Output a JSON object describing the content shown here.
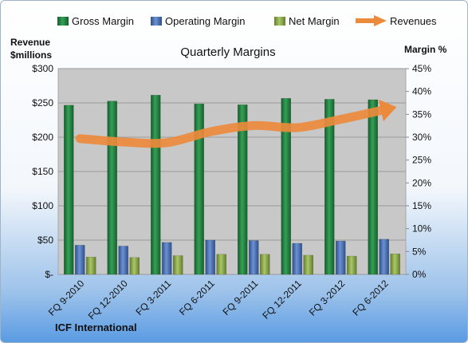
{
  "chart_data": {
    "type": "bar",
    "title": "Quarterly Margins",
    "categories": [
      "FQ 9-2010",
      "FQ 12-2010",
      "FQ 3-2011",
      "FQ 6-2011",
      "FQ 9-2011",
      "FQ 12-2011",
      "FQ 3-2012",
      "FQ 6-2012"
    ],
    "series": [
      {
        "name": "Gross Margin",
        "axis": "margin",
        "color": "#1e7a3c",
        "values": [
          37.0,
          37.9,
          39.2,
          37.3,
          37.1,
          38.5,
          38.3,
          38.2
        ]
      },
      {
        "name": "Operating Margin",
        "axis": "margin",
        "color": "#4a72b8",
        "values": [
          6.4,
          6.2,
          7.0,
          7.5,
          7.4,
          6.8,
          7.3,
          7.7
        ]
      },
      {
        "name": "Net Margin",
        "axis": "margin",
        "color": "#8fb04a",
        "values": [
          3.8,
          3.7,
          4.1,
          4.4,
          4.4,
          4.2,
          4.0,
          4.5
        ]
      },
      {
        "name": "Revenues",
        "axis": "revenue",
        "type": "line",
        "color": "#ec8a3c",
        "values": [
          198,
          193,
          192,
          208,
          217,
          214,
          226,
          240
        ]
      }
    ],
    "y_left": {
      "label_line1": "Revenue",
      "label_line2": "$millions",
      "range": [
        0,
        300
      ],
      "ticks": [
        "$-",
        "$50",
        "$100",
        "$150",
        "$200",
        "$250",
        "$300"
      ]
    },
    "y_right": {
      "label": "Margin %",
      "range": [
        0,
        45
      ],
      "ticks": [
        "0%",
        "5%",
        "10%",
        "15%",
        "20%",
        "25%",
        "30%",
        "35%",
        "40%",
        "45%"
      ]
    },
    "legend_position": "top",
    "grid": "horizontal",
    "footer": "ICF International"
  }
}
